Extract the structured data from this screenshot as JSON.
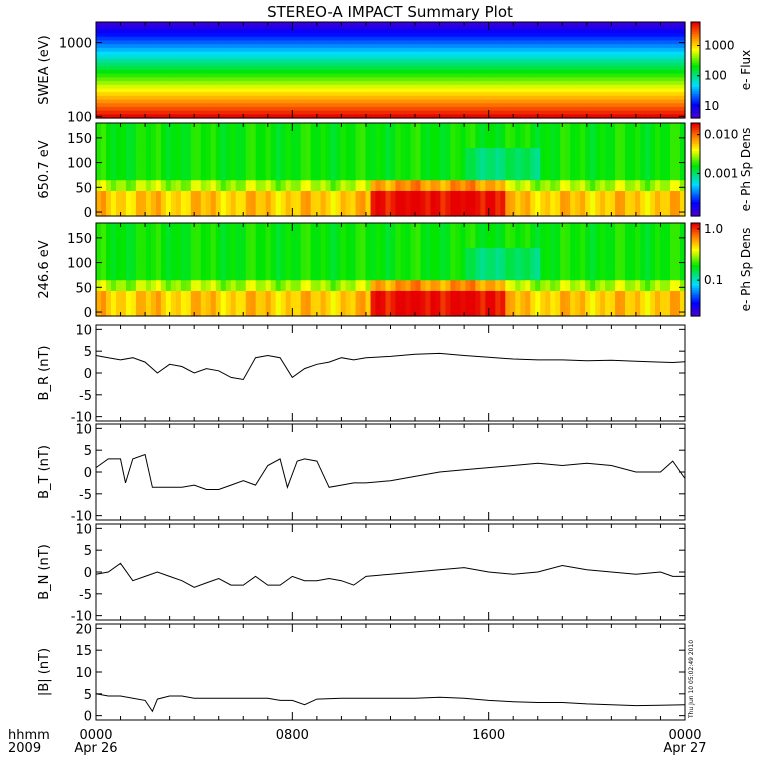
{
  "title": "STEREO-A IMPACT Summary Plot",
  "stamp": "Thu Jun 10 05:02:49 2010",
  "time_axis": {
    "label_line1": "hhmm",
    "label_line2": "2009",
    "ticks": [
      {
        "hour": 0,
        "label": "0000",
        "date": "Apr 26"
      },
      {
        "hour": 8,
        "label": "0800",
        "date": ""
      },
      {
        "hour": 16,
        "label": "1600",
        "date": ""
      },
      {
        "hour": 24,
        "label": "0000",
        "date": "Apr 27"
      }
    ],
    "range_hours": [
      0,
      24
    ]
  },
  "chart_data": [
    {
      "type": "heatmap",
      "ylabel": "SWEA (eV)",
      "yscale": "log",
      "ylim": [
        95,
        1900
      ],
      "yticks": [
        {
          "v": 100,
          "label": "100"
        },
        {
          "v": 1000,
          "label": "1000"
        }
      ],
      "colorbar": {
        "label": "e- Flux",
        "scale": "log",
        "range": [
          4,
          6000
        ],
        "ticks": [
          {
            "v": 10,
            "label": "10"
          },
          {
            "v": 100,
            "label": "100"
          },
          {
            "v": 1000,
            "label": "1000"
          }
        ]
      },
      "description_bands": [
        "red at low energy",
        "blue at high energy"
      ]
    },
    {
      "type": "heatmap",
      "ylabel": "650.7 eV",
      "ylim": [
        -8,
        180
      ],
      "yticks": [
        {
          "v": 0,
          "label": "0"
        },
        {
          "v": 50,
          "label": "50"
        },
        {
          "v": 100,
          "label": "100"
        },
        {
          "v": 150,
          "label": "150"
        }
      ],
      "colorbar": {
        "label": "e- Ph Sp Dens",
        "scale": "log",
        "range": [
          8e-05,
          0.02
        ],
        "ticks": [
          {
            "v": 0.001,
            "label": "0.001"
          },
          {
            "v": 0.01,
            "label": "0.010"
          }
        ]
      }
    },
    {
      "type": "heatmap",
      "ylabel": "246.6 eV",
      "ylim": [
        -8,
        180
      ],
      "yticks": [
        {
          "v": 0,
          "label": "0"
        },
        {
          "v": 50,
          "label": "50"
        },
        {
          "v": 100,
          "label": "100"
        },
        {
          "v": 150,
          "label": "150"
        }
      ],
      "colorbar": {
        "label": "e- Ph Sp Dens",
        "scale": "log",
        "range": [
          0.02,
          1.3
        ],
        "ticks": [
          {
            "v": 0.1,
            "label": "0.1"
          },
          {
            "v": 1,
            "label": "1.0"
          }
        ]
      }
    },
    {
      "type": "line",
      "ylabel": "B_R (nT)",
      "ylim": [
        -11,
        11
      ],
      "yticks": [
        -10,
        -5,
        0,
        5,
        10
      ],
      "series": [
        {
          "x": [
            0,
            0.5,
            1,
            1.5,
            2,
            2.5,
            3,
            3.5,
            4,
            4.5,
            5,
            5.5,
            6,
            6.5,
            7,
            7.5,
            8,
            8.5,
            9,
            9.5,
            10,
            10.5,
            11,
            12,
            13,
            14,
            15,
            16,
            17,
            18,
            19,
            20,
            21,
            22,
            23,
            23.5,
            24
          ],
          "y": [
            4,
            3.5,
            3,
            3.5,
            2.5,
            0,
            2,
            1.5,
            0,
            1,
            0.5,
            -1,
            -1.5,
            3.5,
            4,
            3.5,
            -1,
            1,
            2,
            2.5,
            3.5,
            3,
            3.5,
            3.8,
            4.3,
            4.5,
            4,
            3.6,
            3.2,
            3,
            3,
            2.8,
            2.9,
            2.7,
            2.5,
            2.4,
            2.6
          ]
        }
      ]
    },
    {
      "type": "line",
      "ylabel": "B_T (nT)",
      "ylim": [
        -11,
        11
      ],
      "yticks": [
        -10,
        -5,
        0,
        5,
        10
      ],
      "series": [
        {
          "x": [
            0,
            0.5,
            1,
            1.2,
            1.5,
            2,
            2.3,
            2.8,
            3,
            3.5,
            4,
            4.5,
            5,
            5.5,
            6,
            6.5,
            7,
            7.5,
            7.8,
            8.2,
            8.5,
            9,
            9.5,
            10,
            10.5,
            11,
            12,
            13,
            14,
            15,
            16,
            17,
            18,
            19,
            20,
            21,
            22,
            23,
            23.5,
            24
          ],
          "y": [
            1,
            3,
            3,
            -2.5,
            3,
            4,
            -3.5,
            -3.5,
            -3.5,
            -3.5,
            -3,
            -4,
            -4,
            -3,
            -2,
            -3,
            1.5,
            3,
            -3.5,
            2.5,
            3,
            2.5,
            -3.5,
            -3,
            -2.5,
            -2.5,
            -2,
            -1,
            0,
            0.5,
            1,
            1.5,
            2,
            1.5,
            2,
            1.5,
            0,
            0,
            2.5,
            -1.5
          ]
        }
      ]
    },
    {
      "type": "line",
      "ylabel": "B_N (nT)",
      "ylim": [
        -11,
        11
      ],
      "yticks": [
        -10,
        -5,
        0,
        5,
        10
      ],
      "series": [
        {
          "x": [
            0,
            0.5,
            1,
            1.5,
            2,
            2.5,
            3,
            3.5,
            4,
            4.5,
            5,
            5.5,
            6,
            6.5,
            7,
            7.5,
            8,
            8.5,
            9,
            9.5,
            10,
            10.5,
            11,
            12,
            13,
            14,
            15,
            16,
            17,
            18,
            19,
            20,
            21,
            22,
            23,
            23.5,
            24
          ],
          "y": [
            -0.5,
            0,
            2,
            -2,
            -1,
            0,
            -1,
            -2,
            -3.5,
            -2.5,
            -1.5,
            -3,
            -3,
            -1,
            -3,
            -3,
            -1,
            -2,
            -2,
            -1.5,
            -2,
            -3,
            -1,
            -0.5,
            0,
            0.5,
            1,
            0,
            -0.5,
            0,
            1.5,
            0.5,
            0,
            -0.5,
            0,
            -1,
            -1
          ]
        }
      ]
    },
    {
      "type": "line",
      "ylabel": "|B| (nT)",
      "ylim": [
        -1,
        21
      ],
      "yticks": [
        0,
        5,
        10,
        15,
        20
      ],
      "series": [
        {
          "x": [
            0,
            0.5,
            1,
            1.5,
            2,
            2.3,
            2.5,
            3,
            3.5,
            4,
            5,
            6,
            7,
            7.5,
            8,
            8.5,
            9,
            10,
            11,
            12,
            13,
            14,
            15,
            16,
            17,
            18,
            19,
            20,
            21,
            22,
            23,
            24
          ],
          "y": [
            5,
            4.5,
            4.5,
            4,
            3.5,
            1,
            3.8,
            4.5,
            4.5,
            4,
            4,
            4,
            4,
            3.5,
            3.5,
            2.5,
            3.8,
            4,
            4,
            4,
            4,
            4.2,
            4,
            3.5,
            3.2,
            3,
            3,
            2.7,
            2.5,
            2.3,
            2.4,
            2.5
          ]
        }
      ]
    }
  ]
}
